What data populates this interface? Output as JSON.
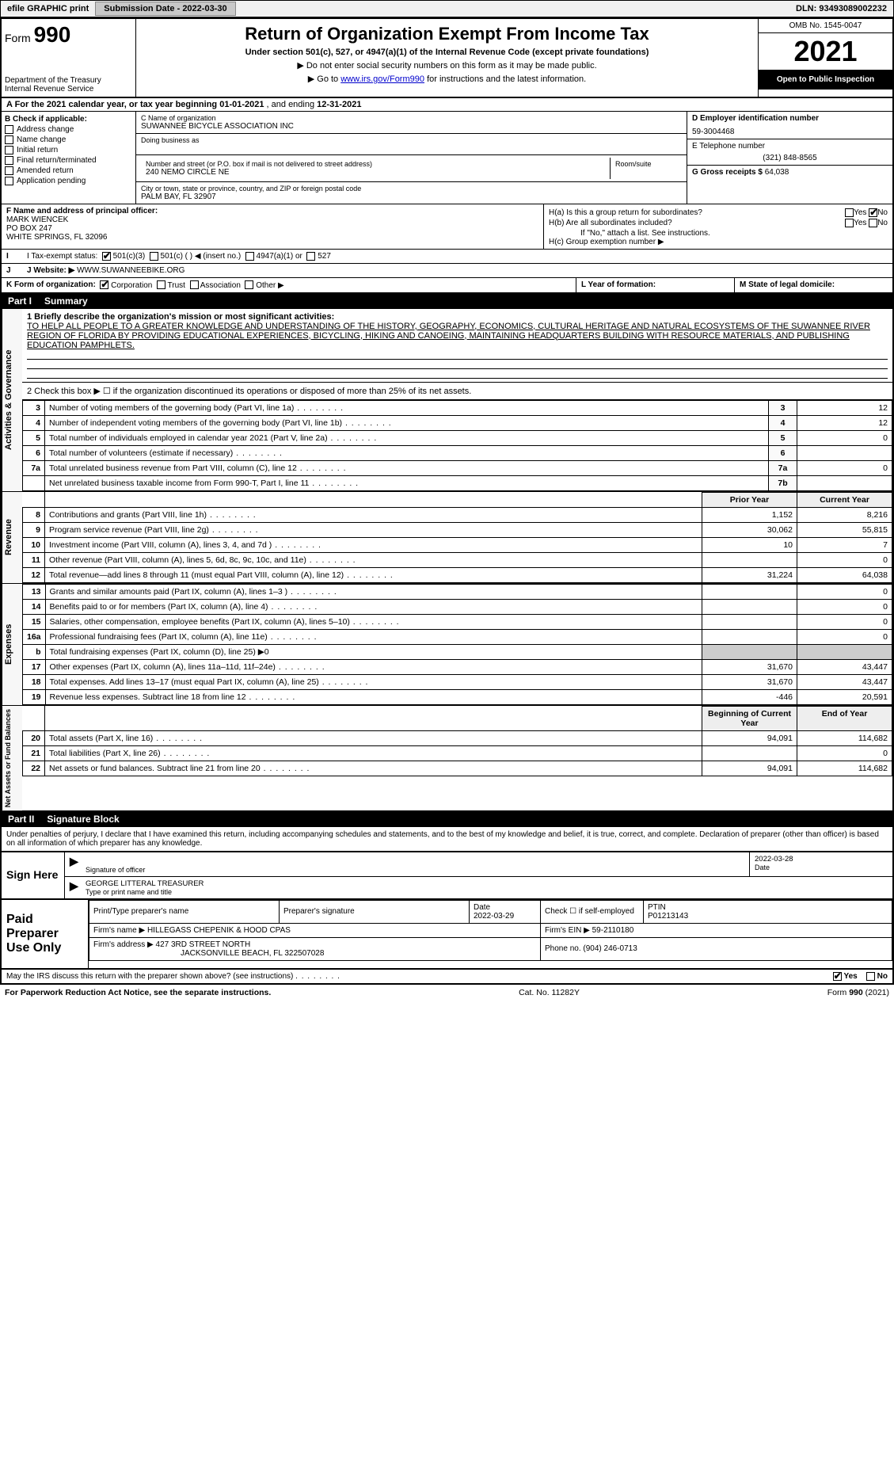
{
  "colors": {
    "black": "#000000",
    "white": "#ffffff",
    "header_bg": "#f0f0f0",
    "btn_bg": "#c8c8c8",
    "link": "#0000cc"
  },
  "efile": {
    "label": "efile GRAPHIC print",
    "submission_label": "Submission Date - 2022-03-30",
    "dln": "DLN: 93493089002232"
  },
  "header": {
    "form_prefix": "Form",
    "form_number": "990",
    "title": "Return of Organization Exempt From Income Tax",
    "subtitle": "Under section 501(c), 527, or 4947(a)(1) of the Internal Revenue Code (except private foundations)",
    "note1": "▶ Do not enter social security numbers on this form as it may be made public.",
    "note2_prefix": "▶ Go to ",
    "note2_link": "www.irs.gov/Form990",
    "note2_suffix": " for instructions and the latest information.",
    "dept": "Department of the Treasury",
    "irs": "Internal Revenue Service",
    "omb": "OMB No. 1545-0047",
    "year": "2021",
    "inspection": "Open to Public Inspection"
  },
  "period": {
    "label_a": "A For the 2021 calendar year, or tax year beginning ",
    "begin": "01-01-2021",
    "mid": "   , and ending ",
    "end": "12-31-2021"
  },
  "boxB": {
    "title": "B Check if applicable:",
    "items": [
      "Address change",
      "Name change",
      "Initial return",
      "Final return/terminated",
      "Amended return",
      "Application pending"
    ]
  },
  "boxC": {
    "name_label": "C Name of organization",
    "name": "SUWANNEE BICYCLE ASSOCIATION INC",
    "dba_label": "Doing business as",
    "addr_label": "Number and street (or P.O. box if mail is not delivered to street address)",
    "room_label": "Room/suite",
    "addr": "240 NEMO CIRCLE NE",
    "city_label": "City or town, state or province, country, and ZIP or foreign postal code",
    "city": "PALM BAY, FL  32907"
  },
  "boxD": {
    "label": "D Employer identification number",
    "value": "59-3004468"
  },
  "boxE": {
    "label": "E Telephone number",
    "value": "(321) 848-8565"
  },
  "boxG": {
    "label": "G Gross receipts $",
    "value": "64,038"
  },
  "boxF": {
    "label": "F  Name and address of principal officer:",
    "name": "MARK WIENCEK",
    "addr1": "PO BOX 247",
    "addr2": "WHITE SPRINGS, FL  32096"
  },
  "boxH": {
    "a": "H(a)  Is this a group return for subordinates?",
    "a_yes": "Yes",
    "a_no": "No",
    "b": "H(b)  Are all subordinates included?",
    "b_note": "If \"No,\" attach a list. See instructions.",
    "c": "H(c)  Group exemption number ▶"
  },
  "boxI": {
    "label": "I  Tax-exempt status:",
    "opts": [
      "501(c)(3)",
      "501(c) (   ) ◀ (insert no.)",
      "4947(a)(1) or",
      "527"
    ]
  },
  "boxJ": {
    "label": "J  Website: ▶",
    "value": "WWW.SUWANNEEBIKE.ORG"
  },
  "boxK": {
    "label": "K Form of organization:",
    "opts": [
      "Corporation",
      "Trust",
      "Association",
      "Other ▶"
    ]
  },
  "boxL": {
    "label": "L Year of formation:"
  },
  "boxM": {
    "label": "M State of legal domicile:"
  },
  "part1": {
    "title_part": "Part I",
    "title": "Summary",
    "sections": {
      "gov_label": "Activities & Governance",
      "rev_label": "Revenue",
      "exp_label": "Expenses",
      "net_label": "Net Assets or Fund Balances"
    },
    "line1_label": "1  Briefly describe the organization's mission or most significant activities:",
    "line1_text": "TO HELP ALL PEOPLE TO A GREATER KNOWLEDGE AND UNDERSTANDING OF THE HISTORY, GEOGRAPHY, ECONOMICS, CULTURAL HERITAGE AND NATURAL ECOSYSTEMS OF THE SUWANNEE RIVER REGION OF FLORIDA BY PROVIDING EDUCATIONAL EXPERIENCES, BICYCLING, HIKING AND CANOEING, MAINTAINING HEADQUARTERS BUILDING WITH RESOURCE MATERIALS, AND PUBLISHING EDUCATION PAMPHLETS.",
    "line2": "2  Check this box ▶ ☐  if the organization discontinued its operations or disposed of more than 25% of its net assets.",
    "rows_gov": [
      {
        "n": "3",
        "t": "Number of voting members of the governing body (Part VI, line 1a)",
        "box": "3",
        "v": "12"
      },
      {
        "n": "4",
        "t": "Number of independent voting members of the governing body (Part VI, line 1b)",
        "box": "4",
        "v": "12"
      },
      {
        "n": "5",
        "t": "Total number of individuals employed in calendar year 2021 (Part V, line 2a)",
        "box": "5",
        "v": "0"
      },
      {
        "n": "6",
        "t": "Total number of volunteers (estimate if necessary)",
        "box": "6",
        "v": ""
      },
      {
        "n": "7a",
        "t": "Total unrelated business revenue from Part VIII, column (C), line 12",
        "box": "7a",
        "v": "0"
      },
      {
        "n": "",
        "t": "Net unrelated business taxable income from Form 990-T, Part I, line 11",
        "box": "7b",
        "v": ""
      }
    ],
    "col_prior": "Prior Year",
    "col_current": "Current Year",
    "rows_rev": [
      {
        "n": "8",
        "t": "Contributions and grants (Part VIII, line 1h)",
        "p": "1,152",
        "c": "8,216"
      },
      {
        "n": "9",
        "t": "Program service revenue (Part VIII, line 2g)",
        "p": "30,062",
        "c": "55,815"
      },
      {
        "n": "10",
        "t": "Investment income (Part VIII, column (A), lines 3, 4, and 7d )",
        "p": "10",
        "c": "7"
      },
      {
        "n": "11",
        "t": "Other revenue (Part VIII, column (A), lines 5, 6d, 8c, 9c, 10c, and 11e)",
        "p": "",
        "c": "0"
      },
      {
        "n": "12",
        "t": "Total revenue—add lines 8 through 11 (must equal Part VIII, column (A), line 12)",
        "p": "31,224",
        "c": "64,038"
      }
    ],
    "rows_exp": [
      {
        "n": "13",
        "t": "Grants and similar amounts paid (Part IX, column (A), lines 1–3 )",
        "p": "",
        "c": "0"
      },
      {
        "n": "14",
        "t": "Benefits paid to or for members (Part IX, column (A), line 4)",
        "p": "",
        "c": "0"
      },
      {
        "n": "15",
        "t": "Salaries, other compensation, employee benefits (Part IX, column (A), lines 5–10)",
        "p": "",
        "c": "0"
      },
      {
        "n": "16a",
        "t": "Professional fundraising fees (Part IX, column (A), line 11e)",
        "p": "",
        "c": "0"
      },
      {
        "n": "b",
        "t": "Total fundraising expenses (Part IX, column (D), line 25) ▶0",
        "p": "—shade—",
        "c": "—shade—"
      },
      {
        "n": "17",
        "t": "Other expenses (Part IX, column (A), lines 11a–11d, 11f–24e)",
        "p": "31,670",
        "c": "43,447"
      },
      {
        "n": "18",
        "t": "Total expenses. Add lines 13–17 (must equal Part IX, column (A), line 25)",
        "p": "31,670",
        "c": "43,447"
      },
      {
        "n": "19",
        "t": "Revenue less expenses. Subtract line 18 from line 12",
        "p": "-446",
        "c": "20,591"
      }
    ],
    "col_begin": "Beginning of Current Year",
    "col_end": "End of Year",
    "rows_net": [
      {
        "n": "20",
        "t": "Total assets (Part X, line 16)",
        "p": "94,091",
        "c": "114,682"
      },
      {
        "n": "21",
        "t": "Total liabilities (Part X, line 26)",
        "p": "",
        "c": "0"
      },
      {
        "n": "22",
        "t": "Net assets or fund balances. Subtract line 21 from line 20",
        "p": "94,091",
        "c": "114,682"
      }
    ]
  },
  "part2": {
    "title_part": "Part II",
    "title": "Signature Block",
    "decl": "Under penalties of perjury, I declare that I have examined this return, including accompanying schedules and statements, and to the best of my knowledge and belief, it is true, correct, and complete. Declaration of preparer (other than officer) is based on all information of which preparer has any knowledge."
  },
  "sign": {
    "here": "Sign Here",
    "sig_label": "Signature of officer",
    "date_label": "Date",
    "date": "2022-03-28",
    "name": "GEORGE LITTERAL  TREASURER",
    "name_label": "Type or print name and title"
  },
  "prep": {
    "label": "Paid Preparer Use Only",
    "h_name": "Print/Type preparer's name",
    "h_sig": "Preparer's signature",
    "h_date": "Date",
    "date": "2022-03-29",
    "check_label": "Check ☐ if self-employed",
    "ptin_label": "PTIN",
    "ptin": "P01213143",
    "firm_name_label": "Firm's name    ▶",
    "firm_name": "HILLEGASS CHEPENIK & HOOD CPAS",
    "firm_ein_label": "Firm's EIN ▶",
    "firm_ein": "59-2110180",
    "firm_addr_label": "Firm's address ▶",
    "firm_addr1": "427 3RD STREET NORTH",
    "firm_addr2": "JACKSONVILLE BEACH, FL  322507028",
    "phone_label": "Phone no.",
    "phone": "(904) 246-0713"
  },
  "may_discuss": {
    "text": "May the IRS discuss this return with the preparer shown above? (see instructions)",
    "yes": "Yes",
    "no": "No"
  },
  "footer": {
    "left": "For Paperwork Reduction Act Notice, see the separate instructions.",
    "mid": "Cat. No. 11282Y",
    "right": "Form 990 (2021)"
  }
}
